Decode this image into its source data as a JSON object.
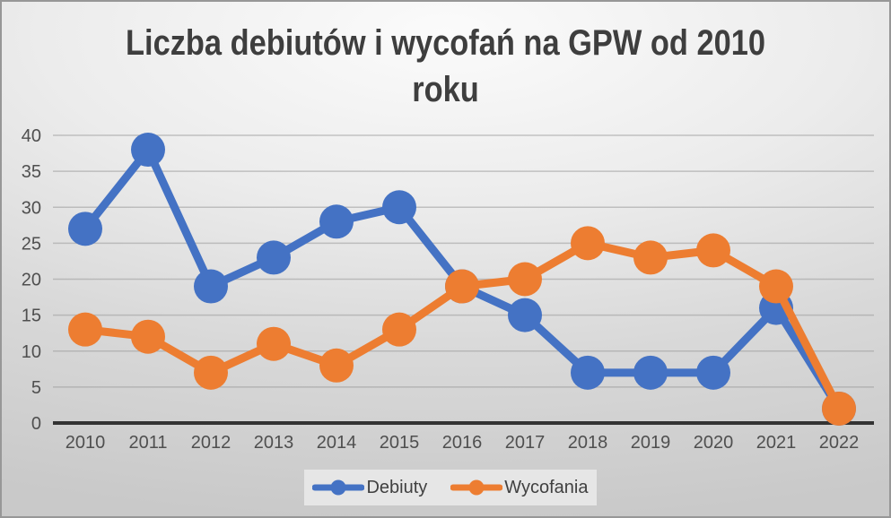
{
  "title": {
    "line1": "Liczba debiutów i wycofań na GPW od 2010",
    "line2": "roku"
  },
  "chart_data": {
    "type": "line",
    "title": "Liczba debiutów i wycofań na GPW od 2010 roku",
    "categories": [
      "2010",
      "2011",
      "2012",
      "2013",
      "2014",
      "2015",
      "2016",
      "2017",
      "2018",
      "2019",
      "2020",
      "2021",
      "2022"
    ],
    "series": [
      {
        "name": "Debiuty",
        "color": "#4472C4",
        "values": [
          27,
          38,
          19,
          23,
          28,
          30,
          19,
          15,
          7,
          7,
          7,
          16,
          2
        ]
      },
      {
        "name": "Wycofania",
        "color": "#ED7D31",
        "values": [
          13,
          12,
          7,
          11,
          8,
          13,
          19,
          20,
          25,
          23,
          24,
          19,
          2
        ]
      }
    ],
    "y_ticks": [
      0,
      5,
      10,
      15,
      20,
      25,
      30,
      35,
      40
    ],
    "ylim": [
      0,
      40
    ],
    "xlabel": "",
    "ylabel": "",
    "grid": true,
    "legend_position": "bottom",
    "marker": "circle"
  },
  "colors": {
    "debiuty": "#4472C4",
    "wycofania": "#ED7D31",
    "axis_line": "#333333",
    "gridline": "#9a9a9a",
    "tick_label": "#4f4f4f",
    "title_text": "#3e3e3e",
    "legend_bg": "#e6e6e6"
  }
}
